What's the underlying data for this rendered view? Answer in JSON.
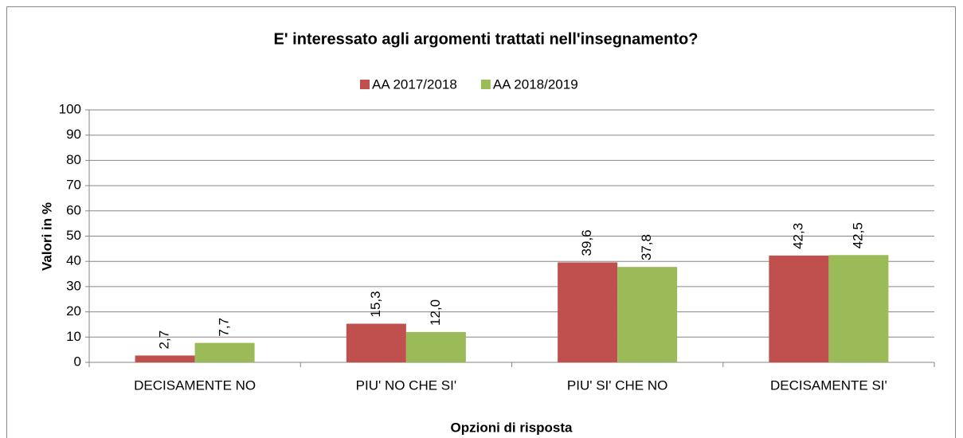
{
  "chart_data": {
    "type": "bar",
    "title": "E' interessato agli argomenti trattati nell'insegnamento?",
    "categories": [
      "DECISAMENTE NO",
      "PIU' NO CHE SI'",
      "PIU' SI' CHE NO",
      "DECISAMENTE SI'"
    ],
    "series": [
      {
        "name": "AA 2017/2018",
        "color": "#c0504d",
        "values": [
          2.7,
          15.3,
          39.6,
          42.3
        ],
        "value_labels": [
          "2,7",
          "15,3",
          "39,6",
          "42,3"
        ]
      },
      {
        "name": "AA 2018/2019",
        "color": "#9bbb59",
        "values": [
          7.7,
          12.0,
          37.8,
          42.5
        ],
        "value_labels": [
          "7,7",
          "12,0",
          "37,8",
          "42,5"
        ]
      }
    ],
    "ylim": [
      0,
      100
    ],
    "yticks": [
      0,
      10,
      20,
      30,
      40,
      50,
      60,
      70,
      80,
      90,
      100
    ],
    "grid": true,
    "y_label": "Valori in %",
    "x_label": "Opzioni di risposta",
    "legend": "top"
  }
}
